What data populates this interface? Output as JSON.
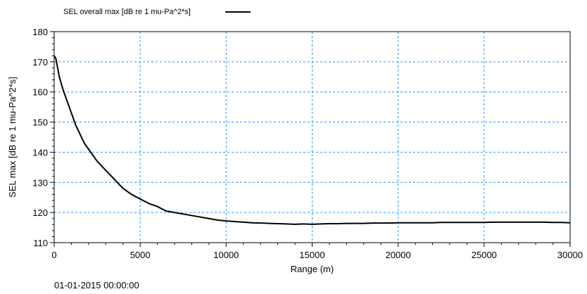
{
  "chart_data": {
    "type": "line",
    "title": "",
    "xlabel": "Range (m)",
    "ylabel": "SEL max [dB re 1 mu-Pa^2*s]",
    "xlim": [
      0,
      30000
    ],
    "ylim": [
      110,
      180
    ],
    "x_ticks": [
      0,
      5000,
      10000,
      15000,
      20000,
      25000,
      30000
    ],
    "y_ticks": [
      110,
      120,
      130,
      140,
      150,
      160,
      170,
      180
    ],
    "grid": true,
    "grid_color": "#1e90ff",
    "line_color": "#000000",
    "legend_position": "top-left",
    "series": [
      {
        "name": "SEL overall max [dB re 1 mu-Pa^2*s]",
        "x": [
          0,
          100,
          200,
          300,
          500,
          750,
          1000,
          1250,
          1500,
          1750,
          2000,
          2500,
          3000,
          3500,
          4000,
          4500,
          5000,
          5500,
          6000,
          6500,
          7000,
          7500,
          8000,
          8500,
          9000,
          9500,
          10000,
          10500,
          11000,
          11500,
          12000,
          12500,
          13000,
          13500,
          14000,
          14500,
          15000,
          15500,
          16000,
          16500,
          17000,
          17500,
          18000,
          18500,
          19000,
          19500,
          20000,
          20500,
          21000,
          21500,
          22000,
          22500,
          23000,
          23500,
          24000,
          24500,
          25000,
          25500,
          26000,
          26500,
          27000,
          27500,
          28000,
          28500,
          29000,
          29500,
          30000
        ],
        "y": [
          172,
          171,
          168,
          165,
          161,
          157,
          153,
          149,
          146,
          143,
          141,
          137,
          134,
          131,
          128,
          126,
          124.5,
          123,
          122,
          120.5,
          120,
          119.5,
          119,
          118.5,
          118,
          117.5,
          117.2,
          117,
          116.8,
          116.6,
          116.5,
          116.4,
          116.3,
          116.2,
          116.1,
          116.2,
          116.1,
          116.2,
          116.3,
          116.3,
          116.4,
          116.4,
          116.4,
          116.5,
          116.5,
          116.5,
          116.6,
          116.6,
          116.6,
          116.6,
          116.6,
          116.7,
          116.7,
          116.7,
          116.7,
          116.7,
          116.7,
          116.8,
          116.8,
          116.8,
          116.8,
          116.8,
          116.8,
          116.8,
          116.7,
          116.7,
          116.6
        ]
      }
    ]
  },
  "footer": {
    "timestamp": "01-01-2015 00:00:00"
  }
}
